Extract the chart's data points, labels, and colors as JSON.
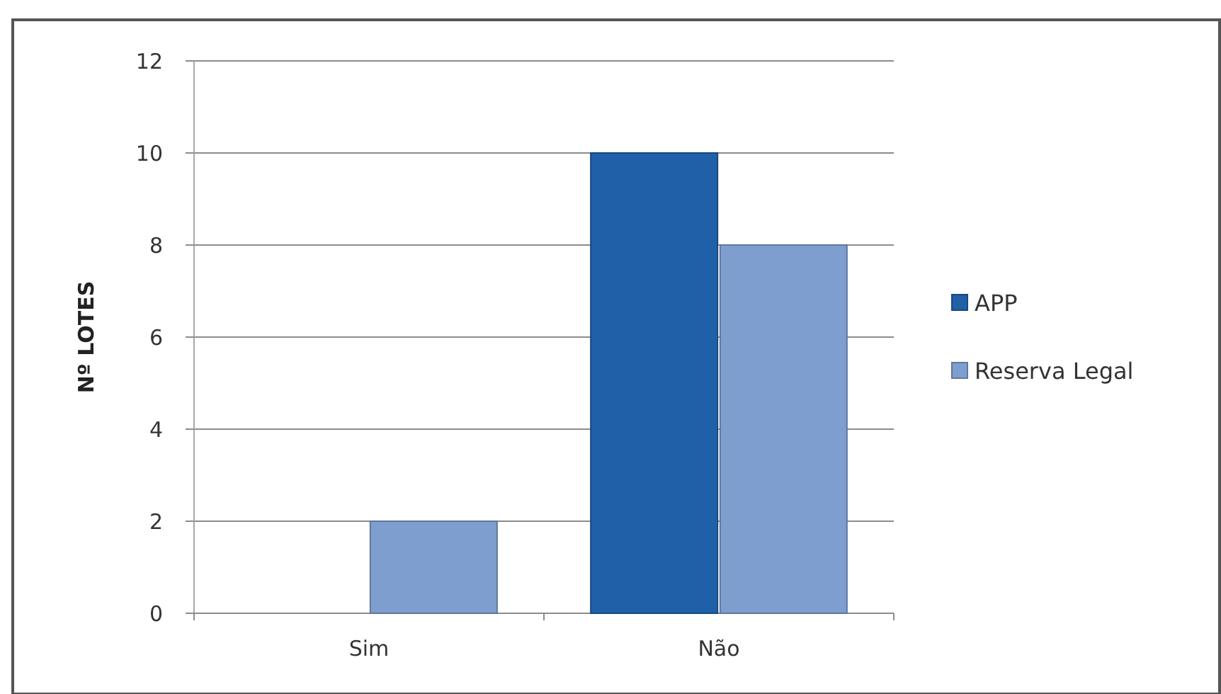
{
  "chart_data": {
    "type": "bar",
    "ylabel": "Nº LOTES",
    "categories": [
      "Sim",
      "Não"
    ],
    "series": [
      {
        "name": "APP",
        "color": "#2060a8",
        "values": [
          0,
          10
        ]
      },
      {
        "name": "Reserva Legal",
        "color": "#7e9ecf",
        "values": [
          2,
          8
        ]
      }
    ],
    "ylim": [
      0,
      12
    ],
    "yticks": [
      0,
      2,
      4,
      6,
      8,
      10,
      12
    ],
    "grid": "y",
    "legend": "right"
  }
}
